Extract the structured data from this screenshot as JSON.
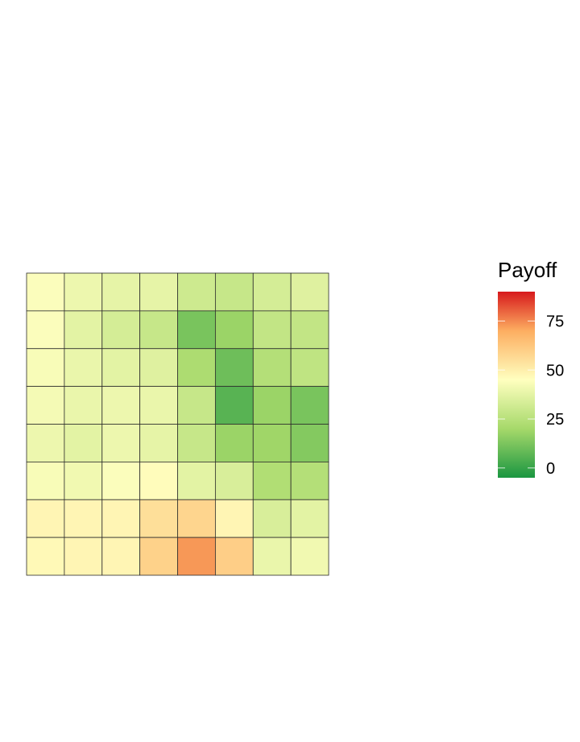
{
  "chart_data": {
    "type": "heatmap",
    "title": "",
    "xlabel": "",
    "ylabel": "",
    "rows": 8,
    "cols": 8,
    "values": [
      [
        44,
        40,
        38,
        38,
        31,
        29,
        33,
        36
      ],
      [
        44,
        37,
        33,
        29,
        12,
        18,
        28,
        28
      ],
      [
        43,
        39,
        37,
        36,
        22,
        10,
        24,
        27
      ],
      [
        42,
        39,
        40,
        39,
        29,
        6,
        18,
        12
      ],
      [
        40,
        37,
        40,
        38,
        29,
        18,
        19,
        14
      ],
      [
        43,
        41,
        44,
        46,
        37,
        34,
        23,
        24
      ],
      [
        48,
        48,
        48,
        55,
        58,
        48,
        34,
        37
      ],
      [
        47,
        48,
        48,
        59,
        73,
        60,
        39,
        41
      ]
    ],
    "legend": {
      "title": "Payoff",
      "ticks": [
        0,
        25,
        50,
        75
      ],
      "range": [
        -5,
        90
      ],
      "placement": "right"
    },
    "colorscale": [
      {
        "value": -5,
        "color": "#1a9641"
      },
      {
        "value": 20,
        "color": "#a6d96a"
      },
      {
        "value": 45,
        "color": "#ffffbf"
      },
      {
        "value": 70,
        "color": "#fdae61"
      },
      {
        "value": 90,
        "color": "#d7191c"
      }
    ]
  }
}
